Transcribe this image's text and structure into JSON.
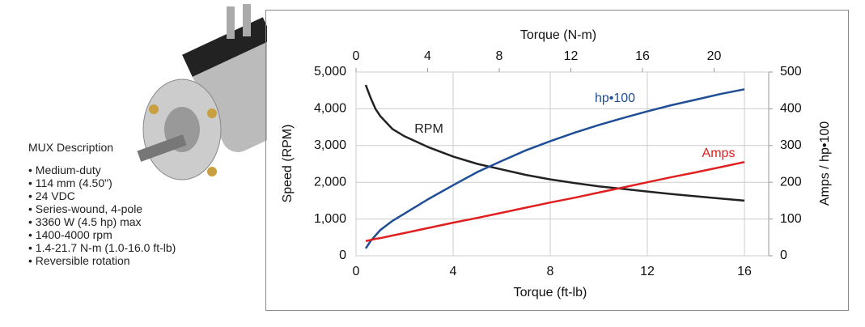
{
  "description": {
    "title": "MUX Description",
    "items": [
      "Medium-duty",
      "114 mm (4.50\")",
      "24 VDC",
      "Series-wound, 4-pole",
      "3360 W (4.5 hp) max",
      "1400-4000 rpm",
      "1.4-21.7 N-m (1.0-16.0 ft-lb)",
      "Reversible rotation"
    ]
  },
  "chart_data": {
    "type": "line",
    "xlabel": "Torque (ft-lb)",
    "x2label": "Torque (N-m)",
    "ylabel": "Speed (RPM)",
    "y2label": "Amps / hp•100",
    "x": [
      0.4,
      0.6,
      0.8,
      1,
      1.5,
      2,
      3,
      4,
      5,
      6,
      7,
      8,
      9,
      10,
      11,
      12,
      13,
      14,
      15,
      16
    ],
    "xlim": [
      0,
      17
    ],
    "xticks": [
      0,
      4,
      8,
      12,
      16
    ],
    "x2lim": [
      0,
      23.05
    ],
    "x2ticks": [
      0,
      4,
      8,
      12,
      16,
      20
    ],
    "ylim": [
      0,
      5000
    ],
    "yticks": [
      0,
      {
        "value": 1000,
        "label": "1,000"
      },
      {
        "value": 2000,
        "label": "2,000"
      },
      {
        "value": 3000,
        "label": "3,000"
      },
      {
        "value": 4000,
        "label": "4,000"
      },
      {
        "value": 5000,
        "label": "5,000"
      }
    ],
    "y2lim": [
      0,
      500
    ],
    "y2ticks": [
      0,
      100,
      200,
      300,
      400,
      500
    ],
    "grid": true,
    "series": [
      {
        "name": "RPM",
        "color": "#222222",
        "values": [
          4650,
          4300,
          4000,
          3800,
          3450,
          3250,
          2950,
          2700,
          2500,
          2350,
          2200,
          2080,
          1980,
          1890,
          1820,
          1750,
          1680,
          1620,
          1560,
          1500
        ]
      },
      {
        "name": "hp•100",
        "color": "#1f4e96",
        "axis": "y2",
        "values": [
          20,
          40,
          55,
          70,
          95,
          115,
          155,
          192,
          228,
          258,
          287,
          312,
          335,
          356,
          375,
          393,
          410,
          425,
          440,
          453
        ]
      },
      {
        "name": "Amps",
        "color": "#e02020",
        "axis": "y2",
        "values": [
          40,
          43,
          46,
          48,
          55,
          62,
          76,
          90,
          103,
          117,
          131,
          145,
          158,
          172,
          186,
          200,
          214,
          227,
          241,
          255
        ]
      }
    ]
  }
}
